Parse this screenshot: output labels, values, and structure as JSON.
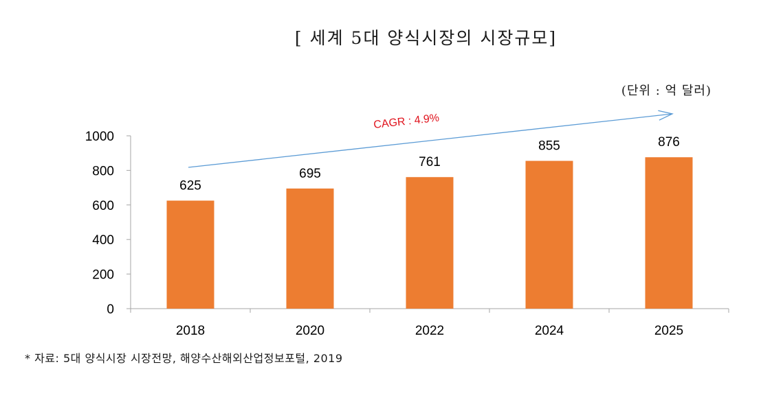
{
  "title": "[ 세계 5대 양식시장의 시장규모]",
  "unit": "(단위 : 억 달러)",
  "source": "* 자료: 5대 양식시장 시장전망, 해양수산해외산업정보포털, 2019",
  "annotation": {
    "text": "CAGR : 4.9%",
    "color": "#e0141e",
    "arrow_color": "#5b9bd5"
  },
  "colors": {
    "bar": "#ed7d31",
    "axis": "#a6a6a6"
  },
  "chart_data": {
    "type": "bar",
    "categories": [
      "2018",
      "2020",
      "2022",
      "2024",
      "2025"
    ],
    "values": [
      625,
      695,
      761,
      855,
      876
    ],
    "data_labels": [
      "625",
      "695",
      "761",
      "855",
      "876"
    ],
    "yticks": [
      "0",
      "200",
      "400",
      "600",
      "800",
      "1000"
    ],
    "ylim": [
      0,
      1000
    ],
    "grid": false,
    "legend": "none"
  }
}
